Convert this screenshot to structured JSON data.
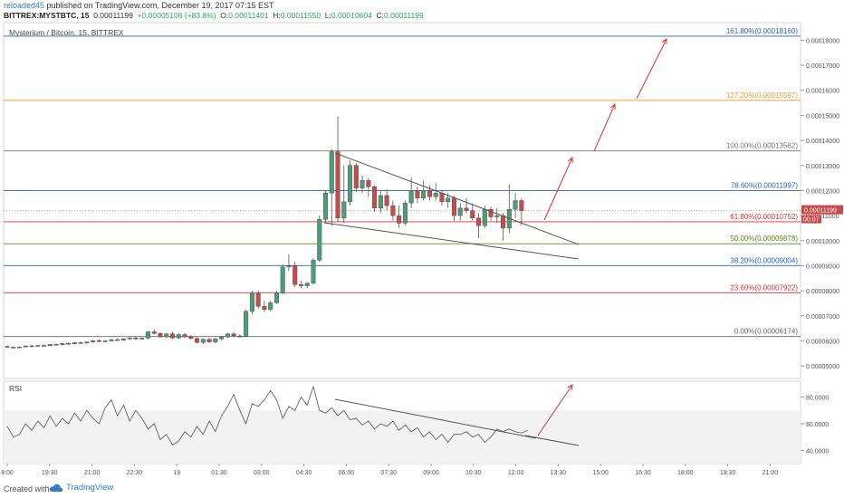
{
  "header": {
    "user": "reloaded45",
    "published": " published on TradingView.com, December 19, 2017 07:15 EST",
    "symbol": "BITTREX:MYSTBTC, 15",
    "change": "+0.00005106 (+83.8%)",
    "o_label": "O:",
    "o_value": "0.00011401",
    "h_label": "H:",
    "h_value": "0.00011550",
    "l_label": "L:",
    "l_value": "0.00010604",
    "c_label": "C:",
    "c_value": "0.00011199"
  },
  "chart_data": [
    {
      "type": "candlestick",
      "title": "Mysterium / Bitcoin, 15, BITTREX",
      "ylim": [
        4.5e-05,
        0.000187
      ],
      "y_ticks": [
        "0.00005000",
        "0.00006000",
        "0.00007000",
        "0.00008000",
        "0.00009000",
        "0.00010000",
        "0.00011000",
        "0.00012000",
        "0.00013000",
        "0.00014000",
        "0.00015000",
        "0.00016000",
        "0.00017000",
        "0.00018000"
      ],
      "x_ticks": [
        "8:00",
        "19:30",
        "21:00",
        "22:30",
        "19",
        "01:30",
        "03:00",
        "04:30",
        "06:00",
        "07:30",
        "09:00",
        "10:30",
        "12:00",
        "13:30",
        "15:00",
        "16:30",
        "18:00",
        "19:30",
        "21:00"
      ],
      "last_price": "0.00011199",
      "countdown": "00:07",
      "colors": {
        "up": "#4d9c7a",
        "down": "#c94a4a"
      },
      "fib_levels": [
        {
          "label": "161.80%(0.00018160)",
          "value": 0.0001816,
          "color": "#2962c8"
        },
        {
          "label": "127.20%(0.00015597)",
          "value": 0.00015597,
          "color": "#f0a030"
        },
        {
          "label": "100.00%(0.00013582)",
          "value": 0.00013582,
          "color": "#777777"
        },
        {
          "label": "78.60%(0.00011997)",
          "value": 0.00011997,
          "color": "#2962c8"
        },
        {
          "label": "61.80%(0.00010752)",
          "value": 0.00010752,
          "color": "#e03030"
        },
        {
          "label": "50.00%(0.00009878)",
          "value": 9.878e-05,
          "color": "#5a8a20"
        },
        {
          "label": "38.20%(0.00009004)",
          "value": 9.004e-05,
          "color": "#2962c8"
        },
        {
          "label": "23.60%(0.00007922)",
          "value": 7.922e-05,
          "color": "#e03030"
        },
        {
          "label": "0.00%(0.00006174)",
          "value": 6.174e-05,
          "color": "#666666"
        }
      ],
      "candles": [
        [
          5.78e-05,
          5.82e-05,
          5.72e-05,
          5.75e-05
        ],
        [
          5.75e-05,
          5.78e-05,
          5.7e-05,
          5.74e-05
        ],
        [
          5.74e-05,
          5.78e-05,
          5.71e-05,
          5.76e-05
        ],
        [
          5.76e-05,
          5.82e-05,
          5.74e-05,
          5.8e-05
        ],
        [
          5.8e-05,
          5.84e-05,
          5.77e-05,
          5.79e-05
        ],
        [
          5.79e-05,
          5.84e-05,
          5.76e-05,
          5.82e-05
        ],
        [
          5.82e-05,
          5.86e-05,
          5.78e-05,
          5.81e-05
        ],
        [
          5.81e-05,
          5.88e-05,
          5.79e-05,
          5.86e-05
        ],
        [
          5.86e-05,
          5.9e-05,
          5.82e-05,
          5.84e-05
        ],
        [
          5.84e-05,
          5.92e-05,
          5.82e-05,
          5.9e-05
        ],
        [
          5.9e-05,
          5.94e-05,
          5.86e-05,
          5.88e-05
        ],
        [
          5.88e-05,
          5.96e-05,
          5.86e-05,
          5.93e-05
        ],
        [
          5.93e-05,
          5.98e-05,
          5.88e-05,
          5.91e-05
        ],
        [
          5.91e-05,
          5.98e-05,
          5.89e-05,
          5.96e-05
        ],
        [
          5.96e-05,
          6.04e-05,
          5.92e-05,
          6.01e-05
        ],
        [
          6.01e-05,
          6.06e-05,
          5.96e-05,
          5.98e-05
        ],
        [
          5.98e-05,
          6.04e-05,
          5.94e-05,
          6e-05
        ],
        [
          6e-05,
          6.08e-05,
          5.97e-05,
          6.05e-05
        ],
        [
          6.05e-05,
          6.1e-05,
          6e-05,
          6.03e-05
        ],
        [
          6.03e-05,
          6.1e-05,
          6e-05,
          6.08e-05
        ],
        [
          6.08e-05,
          6.15e-05,
          6.03e-05,
          6.12e-05
        ],
        [
          6.12e-05,
          6.18e-05,
          6.05e-05,
          6.08e-05
        ],
        [
          6.08e-05,
          6.14e-05,
          6.04e-05,
          6.11e-05
        ],
        [
          6.11e-05,
          6.4e-05,
          6.08e-05,
          6.36e-05
        ],
        [
          6.36e-05,
          6.45e-05,
          6.25e-05,
          6.3e-05
        ],
        [
          6.3e-05,
          6.34e-05,
          6.12e-05,
          6.16e-05
        ],
        [
          6.16e-05,
          6.32e-05,
          6.12e-05,
          6.28e-05
        ],
        [
          6.28e-05,
          6.36e-05,
          6.08e-05,
          6.12e-05
        ],
        [
          6.12e-05,
          6.3e-05,
          6.08e-05,
          6.25e-05
        ],
        [
          6.25e-05,
          6.32e-05,
          6.12e-05,
          6.16e-05
        ],
        [
          6.16e-05,
          6.24e-05,
          6.06e-05,
          6.1e-05
        ],
        [
          6.1e-05,
          6.14e-05,
          5.9e-05,
          5.94e-05
        ],
        [
          5.94e-05,
          6.1e-05,
          5.88e-05,
          6.06e-05
        ],
        [
          6.06e-05,
          6.12e-05,
          5.92e-05,
          5.96e-05
        ],
        [
          5.96e-05,
          6.12e-05,
          5.9e-05,
          6.08e-05
        ],
        [
          6.08e-05,
          6.2e-05,
          6.02e-05,
          6.16e-05
        ],
        [
          6.16e-05,
          6.32e-05,
          6.12e-05,
          6.28e-05
        ],
        [
          6.28e-05,
          6.36e-05,
          6.15e-05,
          6.2e-05
        ],
        [
          6.2e-05,
          6.26e-05,
          6.12e-05,
          6.18e-05
        ],
        [
          6.18e-05,
          7.25e-05,
          6.15e-05,
          7.18e-05
        ],
        [
          7.18e-05,
          8e-05,
          7.05e-05,
          7.9e-05
        ],
        [
          7.9e-05,
          8e-05,
          7.28e-05,
          7.38e-05
        ],
        [
          7.38e-05,
          7.6e-05,
          7.15e-05,
          7.25e-05
        ],
        [
          7.25e-05,
          7.6e-05,
          7.18e-05,
          7.52e-05
        ],
        [
          7.52e-05,
          8e-05,
          7.48e-05,
          7.9e-05
        ],
        [
          7.9e-05,
          9.05e-05,
          7.85e-05,
          8.95e-05
        ],
        [
          8.95e-05,
          9.45e-05,
          8.8e-05,
          9e-05
        ],
        [
          9e-05,
          9.15e-05,
          8.15e-05,
          8.25e-05
        ],
        [
          8.25e-05,
          8.4e-05,
          8.1e-05,
          8.2e-05
        ],
        [
          8.2e-05,
          8.35e-05,
          8.1e-05,
          8.3e-05
        ],
        [
          8.3e-05,
          9.3e-05,
          8.25e-05,
          9.22e-05
        ],
        [
          9.22e-05,
          0.00011,
          9.15e-05,
          0.0001085
        ],
        [
          0.0001085,
          0.00012,
          0.000107,
          0.000119
        ],
        [
          0.000119,
          0.0001365,
          0.000106,
          0.0001355
        ],
        [
          0.0001355,
          0.0001495,
          0.0001075,
          0.000109
        ],
        [
          0.000109,
          0.00013,
          0.000107,
          0.0001155
        ],
        [
          0.0001155,
          0.000132,
          0.000114,
          0.00013
        ],
        [
          0.00013,
          0.000131,
          0.0001195,
          0.000121
        ],
        [
          0.000121,
          0.000126,
          0.000119,
          0.000124
        ],
        [
          0.000124,
          0.000125,
          0.0001175,
          0.0001215
        ],
        [
          0.0001215,
          0.000122,
          0.0001115,
          0.000113
        ],
        [
          0.000113,
          0.00012,
          0.000111,
          0.000118
        ],
        [
          0.000118,
          0.0001205,
          0.000112,
          0.000114
        ],
        [
          0.000114,
          0.000116,
          0.000108,
          0.00011
        ],
        [
          0.00011,
          0.000114,
          0.000105,
          0.000107
        ],
        [
          0.000107,
          0.000116,
          0.000106,
          0.000115
        ],
        [
          0.000115,
          0.000125,
          0.000113,
          0.00012
        ],
        [
          0.00012,
          0.0001215,
          0.000115,
          0.000117
        ],
        [
          0.000117,
          0.000124,
          0.000116,
          0.00012
        ],
        [
          0.00012,
          0.000122,
          0.000116,
          0.0001175
        ],
        [
          0.0001175,
          0.000123,
          0.000116,
          0.000119
        ],
        [
          0.000119,
          0.00012,
          0.000114,
          0.0001155
        ],
        [
          0.0001155,
          0.000119,
          0.000113,
          0.000117
        ],
        [
          0.000117,
          0.000118,
          0.000108,
          0.00011
        ],
        [
          0.00011,
          0.000115,
          0.000108,
          0.000113
        ],
        [
          0.000113,
          0.000117,
          0.000111,
          0.000112
        ],
        [
          0.000112,
          0.000115,
          0.000108,
          0.000109
        ],
        [
          0.000109,
          0.000111,
          0.000101,
          0.000106
        ],
        [
          0.000106,
          0.000114,
          0.000105,
          0.0001125
        ],
        [
          0.0001125,
          0.0001135,
          0.000108,
          0.0001095
        ],
        [
          0.0001095,
          0.000113,
          0.000107,
          0.00011
        ],
        [
          0.00011,
          0.000111,
          0.0001,
          0.000105
        ],
        [
          0.000105,
          0.0001225,
          0.000103,
          0.0001125
        ],
        [
          0.0001125,
          0.000119,
          0.000109,
          0.000116
        ],
        [
          0.000116,
          0.000117,
          0.000106,
          0.000112
        ]
      ]
    },
    {
      "type": "line",
      "title": "RSI",
      "ylim": [
        30,
        92
      ],
      "y_ticks": [
        "40.0000",
        "60.0000",
        "80.0000"
      ],
      "band": [
        30,
        70
      ],
      "values": [
        58,
        50,
        52,
        60,
        55,
        62,
        57,
        66,
        58,
        64,
        60,
        68,
        62,
        70,
        64,
        60,
        72,
        78,
        66,
        74,
        62,
        70,
        64,
        56,
        60,
        48,
        52,
        44,
        47,
        54,
        50,
        58,
        52,
        62,
        54,
        66,
        73,
        82,
        70,
        60,
        75,
        73,
        78,
        85,
        78,
        64,
        73,
        70,
        80,
        74,
        88,
        70,
        68,
        72,
        66,
        70,
        63,
        64,
        59,
        62,
        56,
        60,
        58,
        62,
        55,
        59,
        54,
        57,
        50,
        54,
        48,
        52,
        46,
        52,
        52,
        54,
        50,
        52,
        46,
        50,
        56,
        54,
        56,
        54,
        53,
        55
      ]
    }
  ],
  "footer": {
    "created": "Created with",
    "brand": "TradingView"
  }
}
